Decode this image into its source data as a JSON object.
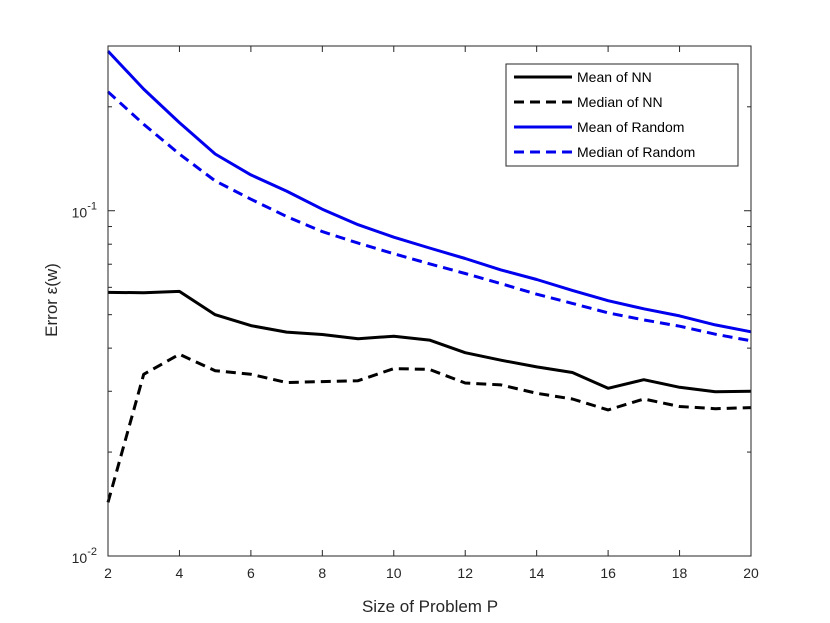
{
  "chart_data": {
    "type": "line",
    "title": "",
    "xlabel": "Size of Problem P",
    "ylabel": "Error ε(w)",
    "xlim": [
      2,
      20
    ],
    "ylim": [
      0.01,
      0.3
    ],
    "yscale": "log",
    "x_ticks": [
      2,
      4,
      6,
      8,
      10,
      12,
      14,
      16,
      18,
      20
    ],
    "y_ticks": [
      {
        "value": 0.01,
        "base": "10",
        "exp": "-2"
      },
      {
        "value": 0.1,
        "base": "10",
        "exp": "-1"
      }
    ],
    "legend_position": "top-right",
    "x": [
      2,
      3,
      4,
      5,
      6,
      7,
      8,
      9,
      10,
      11,
      12,
      13,
      14,
      15,
      16,
      17,
      18,
      19,
      20
    ],
    "series": [
      {
        "name": "Mean of NN",
        "color": "#000000",
        "dash": "solid",
        "values": [
          0.058,
          0.0579,
          0.0584,
          0.05,
          0.0465,
          0.0445,
          0.0438,
          0.0426,
          0.0433,
          0.0422,
          0.0388,
          0.0369,
          0.0353,
          0.034,
          0.0306,
          0.0324,
          0.0308,
          0.0299,
          0.03
        ]
      },
      {
        "name": "Median of NN",
        "color": "#000000",
        "dash": "dashed",
        "values": [
          0.0143,
          0.0336,
          0.0384,
          0.0344,
          0.0336,
          0.0318,
          0.032,
          0.0322,
          0.0349,
          0.0347,
          0.0317,
          0.0313,
          0.0296,
          0.0285,
          0.0265,
          0.0285,
          0.0271,
          0.0267,
          0.0269
        ]
      },
      {
        "name": "Mean of Random",
        "color": "#0000ee",
        "dash": "solid",
        "values": [
          0.29,
          0.225,
          0.18,
          0.146,
          0.127,
          0.114,
          0.101,
          0.0911,
          0.0838,
          0.078,
          0.0727,
          0.0674,
          0.0632,
          0.0588,
          0.0549,
          0.052,
          0.0496,
          0.0467,
          0.0446
        ]
      },
      {
        "name": "Median of Random",
        "color": "#0000ee",
        "dash": "dashed",
        "values": [
          0.221,
          0.178,
          0.146,
          0.122,
          0.108,
          0.0962,
          0.087,
          0.0806,
          0.0751,
          0.0702,
          0.0658,
          0.0615,
          0.0573,
          0.0539,
          0.0506,
          0.0483,
          0.0463,
          0.0439,
          0.042
        ]
      }
    ]
  }
}
